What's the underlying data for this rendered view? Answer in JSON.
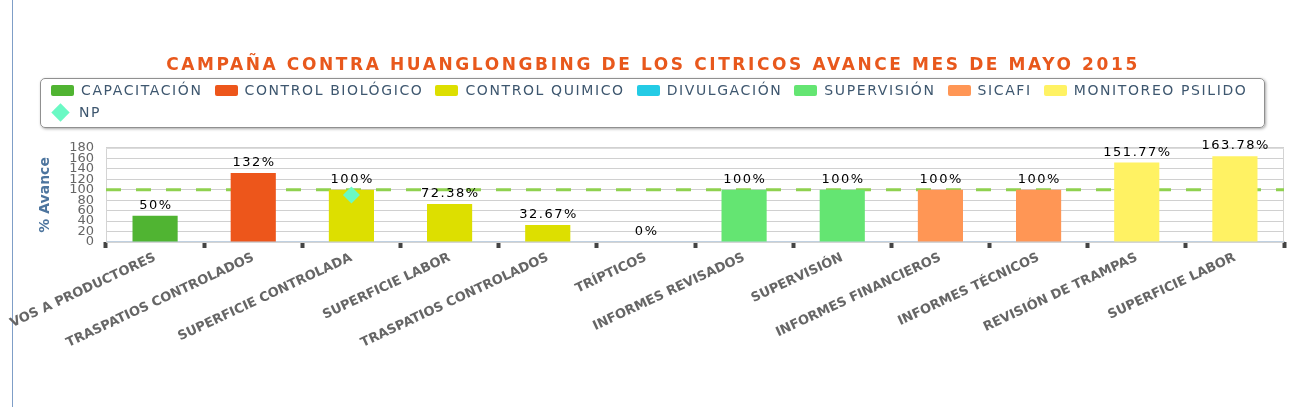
{
  "chart_data": {
    "type": "bar",
    "title": "CAMPAÑA CONTRA HUANGLONGBING DE LOS CITRICOS AVANCE MES DE MAYO 2015",
    "ylabel": "% Avance",
    "categories": [
      "VOS A PRODUCTORES",
      "TRASPATIOS CONTROLADOS",
      "SUPERFICIE CONTROLADA",
      "SUPERFICIE LABOR",
      "TRASPATIOS CONTROLADOS",
      "TRÍPTICOS",
      "INFORMES REVISADOS",
      "SUPERVISIÓN",
      "INFORMES FINANCIEROS",
      "INFORMES TÉCNICOS",
      "REVISIÓN DE TRAMPAS",
      "SUPERFICIE LABOR"
    ],
    "series": [
      {
        "name": "CAPACITACIÓN",
        "color": "#50b432",
        "values": [
          50,
          null,
          null,
          null,
          null,
          null,
          null,
          null,
          null,
          null,
          null,
          null
        ],
        "value_labels": [
          "50%",
          null,
          null,
          null,
          null,
          null,
          null,
          null,
          null,
          null,
          null,
          null
        ]
      },
      {
        "name": "CONTROL BIOLÓGICO",
        "color": "#ed561b",
        "values": [
          null,
          132,
          null,
          null,
          null,
          null,
          null,
          null,
          null,
          null,
          null,
          null
        ],
        "value_labels": [
          null,
          "132%",
          null,
          null,
          null,
          null,
          null,
          null,
          null,
          null,
          null,
          null
        ]
      },
      {
        "name": "CONTROL QUIMICO",
        "color": "#dddf00",
        "values": [
          null,
          null,
          100,
          72.38,
          32.67,
          null,
          null,
          null,
          null,
          null,
          null,
          null
        ],
        "value_labels": [
          null,
          null,
          "100%",
          "72.38%",
          "32.67%",
          null,
          null,
          null,
          null,
          null,
          null,
          null
        ]
      },
      {
        "name": "DIVULGACIÓN",
        "color": "#24cbe5",
        "values": [
          null,
          null,
          null,
          null,
          null,
          0,
          null,
          null,
          null,
          null,
          null,
          null
        ],
        "value_labels": [
          null,
          null,
          null,
          null,
          null,
          "0%",
          null,
          null,
          null,
          null,
          null,
          null
        ]
      },
      {
        "name": "SUPERVISIÓN",
        "color": "#64e572",
        "values": [
          null,
          null,
          null,
          null,
          null,
          null,
          100,
          100,
          null,
          null,
          null,
          null
        ],
        "value_labels": [
          null,
          null,
          null,
          null,
          null,
          null,
          "100%",
          "100%",
          null,
          null,
          null,
          null
        ]
      },
      {
        "name": "SICAFI",
        "color": "#ff9655",
        "values": [
          null,
          null,
          null,
          null,
          null,
          null,
          null,
          null,
          100,
          100,
          null,
          null
        ],
        "value_labels": [
          null,
          null,
          null,
          null,
          null,
          null,
          null,
          null,
          "100%",
          "100%",
          null,
          null
        ]
      },
      {
        "name": "MONITOREO PSILIDO",
        "color": "#fff263",
        "values": [
          null,
          null,
          null,
          null,
          null,
          null,
          null,
          null,
          null,
          null,
          151.77,
          163.78
        ],
        "value_labels": [
          null,
          null,
          null,
          null,
          null,
          null,
          null,
          null,
          null,
          null,
          "151.77%",
          "163.78%"
        ]
      },
      {
        "name": "NP",
        "type": "scatter",
        "color": "#6af9c4",
        "marker": "diamond",
        "values": [
          null,
          null,
          90,
          null,
          null,
          null,
          null,
          null,
          null,
          null,
          null,
          null
        ]
      }
    ],
    "ylim": [
      0,
      180
    ],
    "yticks": [
      0,
      20,
      40,
      60,
      80,
      100,
      120,
      140,
      160,
      180
    ],
    "grid": "y",
    "legend": "top",
    "ref_lines": [
      {
        "axis": "y",
        "value": 100,
        "color": "#8fd14f",
        "line_style": "dashed"
      }
    ]
  }
}
